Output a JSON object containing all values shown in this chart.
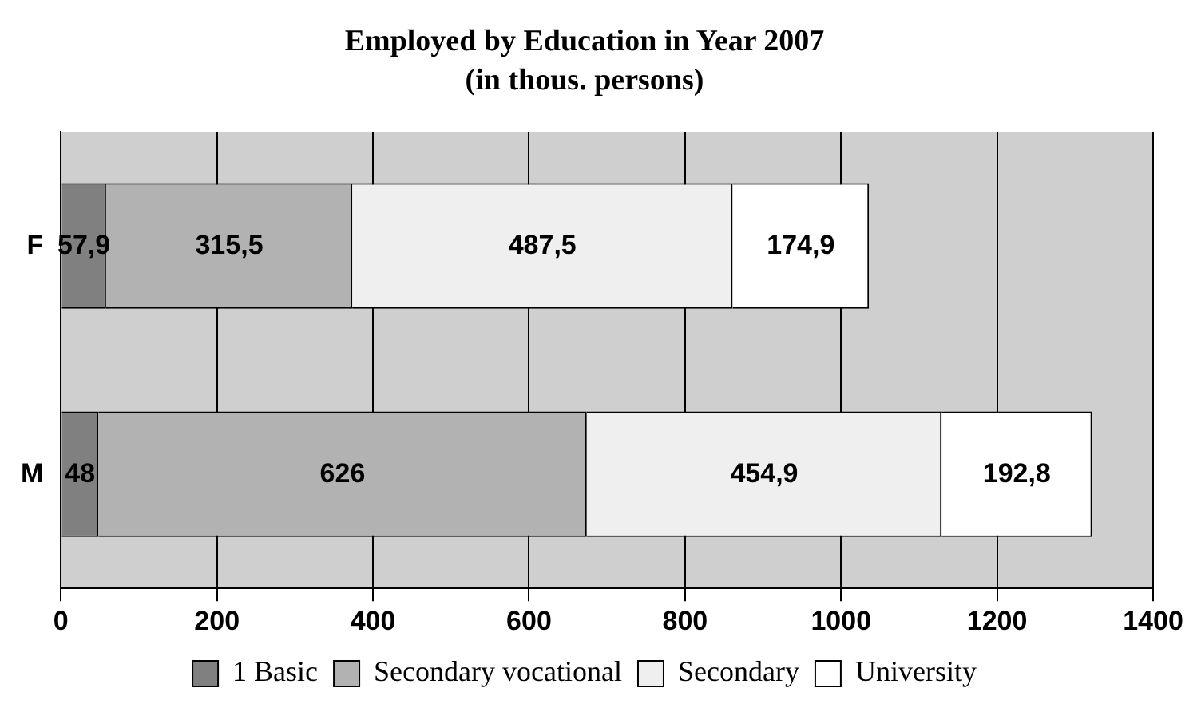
{
  "chart_data": {
    "type": "bar",
    "orientation": "horizontal",
    "stacked": true,
    "title": "Employed by Education in Year 2007",
    "subtitle": "(in thous. persons)",
    "categories": [
      "F",
      "M"
    ],
    "series": [
      {
        "name": "1 Basic",
        "color": "#808080",
        "values": [
          57.9,
          48
        ],
        "value_labels": [
          "57,9",
          "48"
        ]
      },
      {
        "name": "Secondary vocational",
        "color": "#b2b2b2",
        "values": [
          315.5,
          626
        ],
        "value_labels": [
          "315,5",
          "626"
        ]
      },
      {
        "name": "Secondary",
        "color": "#efefef",
        "values": [
          487.5,
          454.9
        ],
        "value_labels": [
          "487,5",
          "454,9"
        ]
      },
      {
        "name": "University",
        "color": "#ffffff",
        "values": [
          174.9,
          192.8
        ],
        "value_labels": [
          "174,9",
          "192,8"
        ]
      }
    ],
    "xlim": [
      0,
      1400
    ],
    "xticks": [
      0,
      200,
      400,
      600,
      800,
      1000,
      1200,
      1400
    ],
    "grid": "x",
    "legend": "bottom"
  }
}
